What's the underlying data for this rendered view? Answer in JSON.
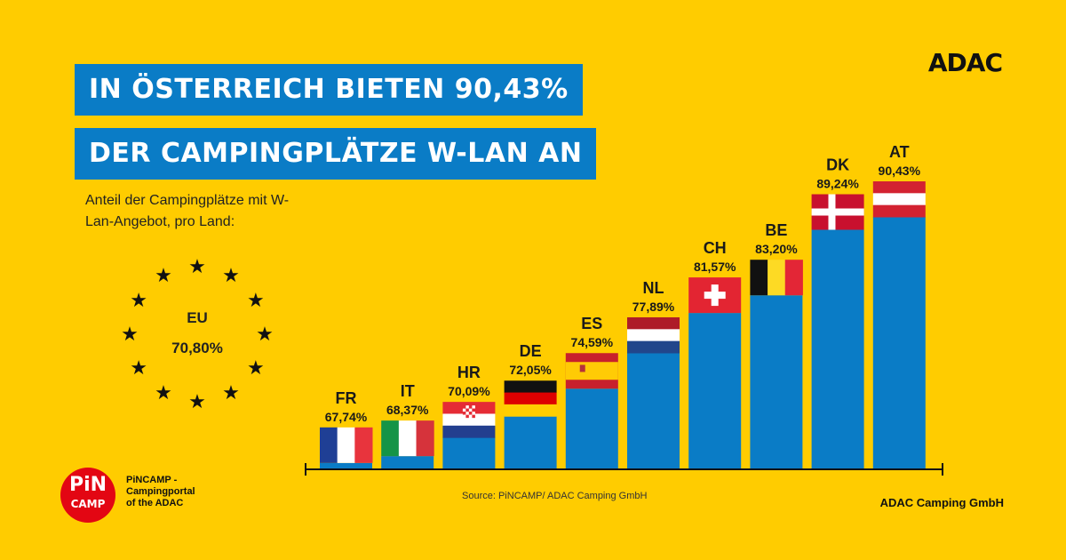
{
  "headline": {
    "line1": "IN ÖSTERREICH BIETEN 90,43%",
    "line2": "DER CAMPINGPLÄTZE W-LAN AN"
  },
  "brand": "ADAC",
  "subtitle": "Anteil der Campingplätze mit W-Lan-Angebot, pro Land:",
  "eu": {
    "name": "EU",
    "value": "70,80%",
    "star_icon": "star-icon",
    "star_color": "#111111"
  },
  "chart_data": {
    "type": "bar",
    "title": "",
    "xlabel": "",
    "ylabel": "",
    "categories": [
      "FR",
      "IT",
      "HR",
      "DE",
      "ES",
      "NL",
      "CH",
      "BE",
      "DK",
      "AT"
    ],
    "values": [
      67.74,
      68.37,
      70.09,
      72.05,
      74.59,
      77.89,
      81.57,
      83.2,
      89.24,
      90.43
    ],
    "value_labels": [
      "67,74%",
      "68,37%",
      "70,09%",
      "72,05%",
      "74,59%",
      "77,89%",
      "81,57%",
      "83,20%",
      "89,24%",
      "90,43%"
    ],
    "bar_color": "#0A7CC6",
    "flag_icons": [
      "flag-fr",
      "flag-it",
      "flag-hr",
      "flag-de",
      "flag-es",
      "flag-nl",
      "flag-ch",
      "flag-be",
      "flag-dk",
      "flag-at"
    ],
    "grid": false,
    "legend": "none"
  },
  "source": "Source: PiNCAMP/ ADAC Camping GmbH",
  "footer_right": "ADAC Camping GmbH",
  "logo": {
    "top": "PiN",
    "bottom": "CAMP",
    "caption_lines": [
      "PiNCAMP -",
      "Campingportal",
      "of the ADAC"
    ],
    "color": "#E30613"
  }
}
